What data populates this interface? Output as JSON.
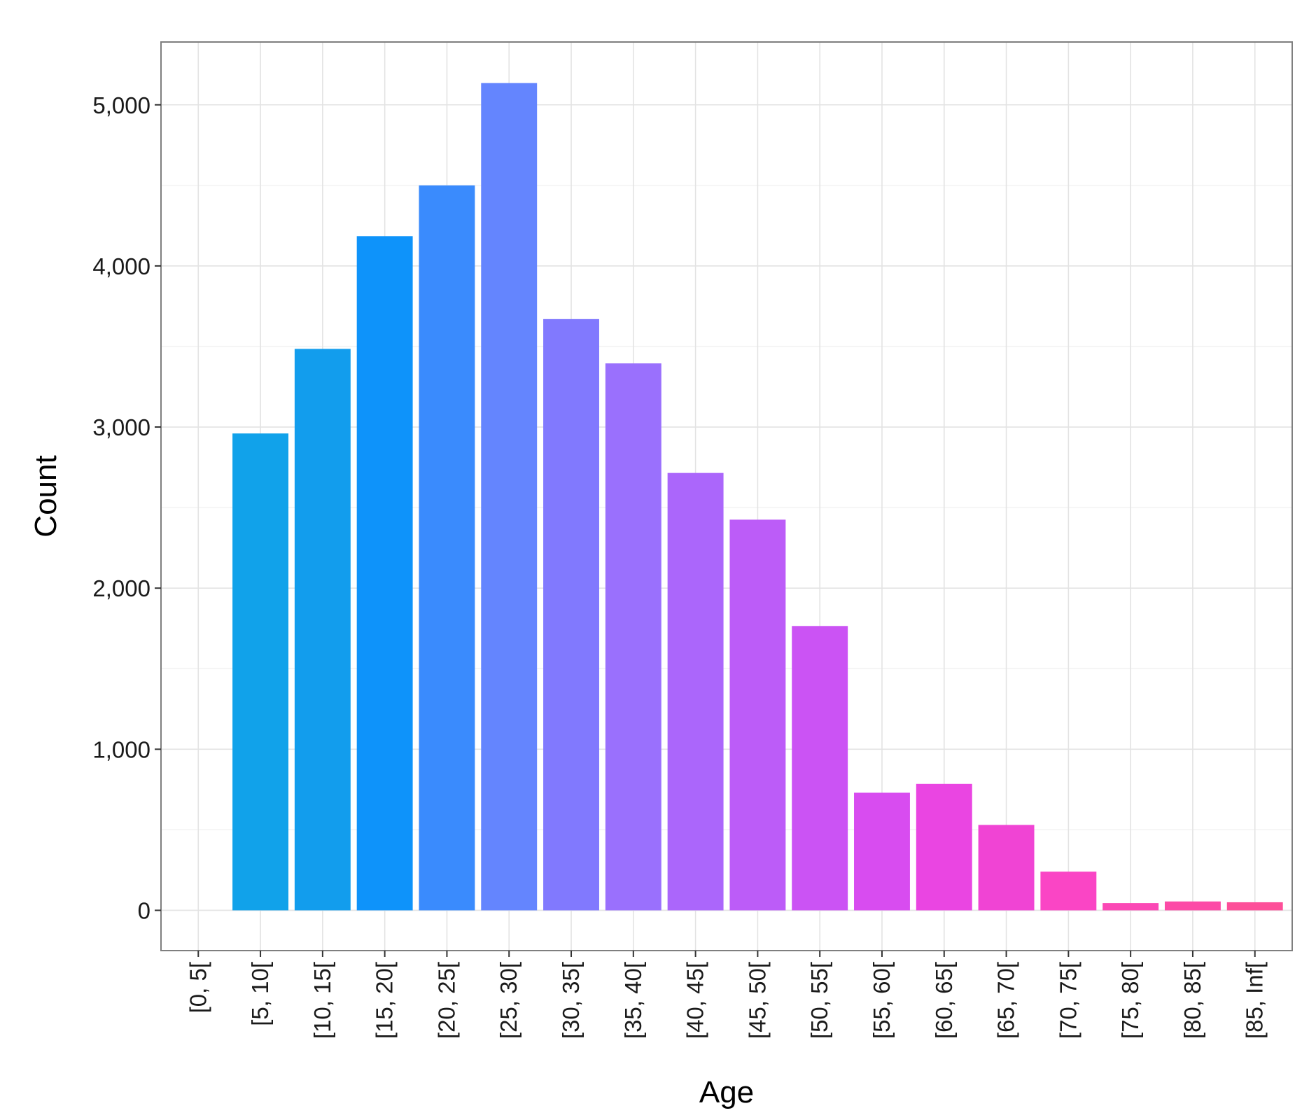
{
  "chart_data": {
    "type": "bar",
    "title": "",
    "xlabel": "Age",
    "ylabel": "Count",
    "categories": [
      "[0, 5[",
      "[5, 10[",
      "[10, 15[",
      "[15, 20[",
      "[20, 25[",
      "[25, 30[",
      "[30, 35[",
      "[35, 40[",
      "[40, 45[",
      "[45, 50[",
      "[50, 55[",
      "[55, 60[",
      "[60, 65[",
      "[65, 70[",
      "[70, 75[",
      "[75, 80[",
      "[80, 85[",
      "[85, Inf["
    ],
    "values": [
      0,
      2960,
      3485,
      4185,
      4500,
      5135,
      3670,
      3395,
      2715,
      2425,
      1765,
      730,
      785,
      530,
      240,
      45,
      55,
      50
    ],
    "ylim": [
      -250,
      5390
    ],
    "yticks": [
      0,
      1000,
      2000,
      3000,
      4000,
      5000
    ],
    "ytick_labels": [
      "0",
      "1,000",
      "2,000",
      "3,000",
      "4,000",
      "5,000"
    ],
    "grid": true,
    "colors": [
      "#00a9ff",
      "#11a2ea",
      "#129ded",
      "#0e93fa",
      "#3a8bfd",
      "#6485fe",
      "#8179fe",
      "#9a70fd",
      "#ab66fb",
      "#bc5cf8",
      "#cb53f4",
      "#d84cf0",
      "#ea45e2",
      "#f044d4",
      "#fa45c5",
      "#fb48b5",
      "#fc4ba7",
      "#fd4f99"
    ]
  }
}
